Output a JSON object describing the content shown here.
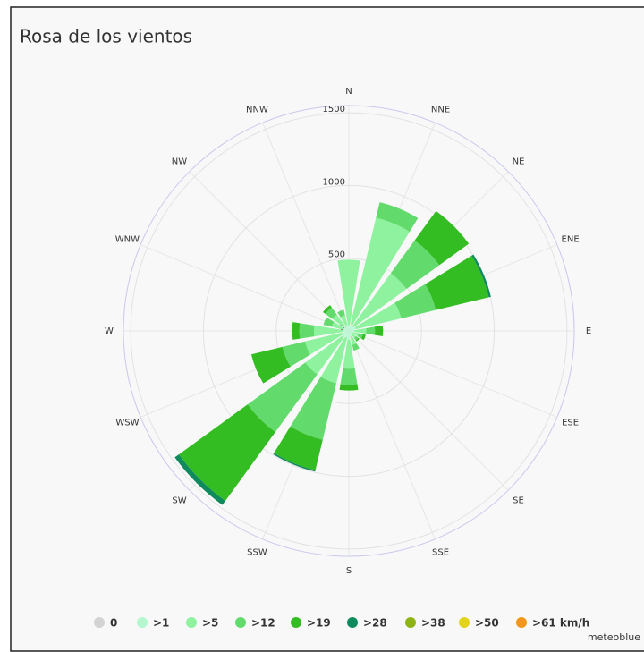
{
  "chart_data": {
    "type": "windrose",
    "title": "Rosa de los vientos",
    "categories": [
      "N",
      "NNE",
      "NE",
      "ENE",
      "E",
      "ESE",
      "SE",
      "SSE",
      "S",
      "SSW",
      "SW",
      "WSW",
      "W",
      "WNW",
      "NW",
      "NNW"
    ],
    "ylim": [
      0,
      1550
    ],
    "yticks": [
      0,
      500,
      1000,
      1500
    ],
    "grid": true,
    "series": [
      {
        "name": "0",
        "color": "#d3d3d3",
        "values": [
          0,
          0,
          0,
          0,
          0,
          0,
          0,
          0,
          0,
          0,
          0,
          0,
          0,
          0,
          0,
          0
        ]
      },
      {
        "name": ">1",
        "color": "#b4f7cf",
        "values": [
          40,
          50,
          40,
          50,
          40,
          30,
          30,
          40,
          60,
          50,
          60,
          50,
          40,
          40,
          50,
          40
        ]
      },
      {
        "name": ">5",
        "color": "#8ef29f",
        "values": [
          450,
          750,
          450,
          320,
          80,
          40,
          30,
          60,
          200,
          320,
          310,
          260,
          200,
          80,
          90,
          70
        ]
      },
      {
        "name": ">12",
        "color": "#62db6c",
        "values": [
          0,
          110,
          280,
          245,
          60,
          30,
          20,
          40,
          110,
          400,
          490,
          160,
          100,
          60,
          60,
          40
        ]
      },
      {
        "name": ">19",
        "color": "#33bd22",
        "values": [
          0,
          0,
          250,
          375,
          55,
          20,
          10,
          0,
          40,
          215,
          585,
          220,
          50,
          0,
          20,
          0
        ]
      },
      {
        "name": ">28",
        "color": "#0f8a5c",
        "values": [
          0,
          0,
          0,
          15,
          0,
          0,
          0,
          0,
          0,
          10,
          35,
          0,
          0,
          0,
          0,
          0
        ]
      },
      {
        "name": ">38",
        "color": "#8db414",
        "values": [
          0,
          0,
          0,
          0,
          0,
          0,
          0,
          0,
          0,
          0,
          0,
          0,
          0,
          0,
          0,
          0
        ]
      },
      {
        "name": ">50",
        "color": "#e3d41a",
        "values": [
          0,
          0,
          0,
          0,
          0,
          0,
          0,
          0,
          0,
          0,
          0,
          0,
          0,
          0,
          0,
          0
        ]
      },
      {
        "name": ">61 km/h",
        "color": "#f2961c",
        "values": [
          0,
          0,
          0,
          0,
          0,
          0,
          0,
          0,
          0,
          0,
          0,
          0,
          0,
          0,
          0,
          0
        ]
      }
    ],
    "credit": "meteoblue"
  }
}
